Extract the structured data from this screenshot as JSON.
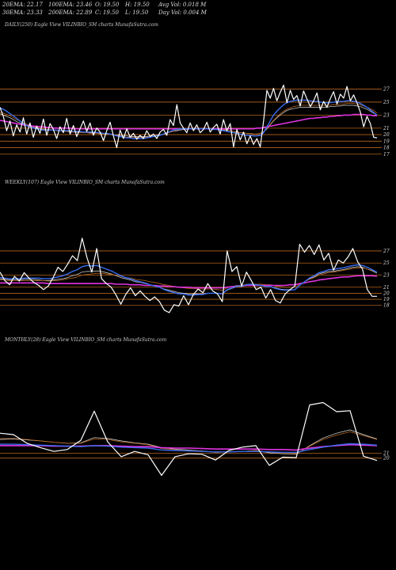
{
  "stats": [
    {
      "id": "ema20",
      "label": "20EMA: 22.17"
    },
    {
      "id": "ema100",
      "label": "100EMA: 23.46"
    },
    {
      "id": "open",
      "label": "O: 19.50"
    },
    {
      "id": "high",
      "label": "H: 19.50"
    },
    {
      "id": "avgvol",
      "label": "Avg Vol: 0.018 M"
    },
    {
      "id": "ema30",
      "label": "30EMA: 23.33"
    },
    {
      "id": "ema200",
      "label": "200EMA: 22.89"
    },
    {
      "id": "close",
      "label": "C: 19.50"
    },
    {
      "id": "low",
      "label": "L: 19.50"
    },
    {
      "id": "dayvol",
      "label": "Day Vol: 0.004  M"
    }
  ],
  "colors": {
    "background": "#000000",
    "price": "#ffffff",
    "ema_blue": "#3a6df0",
    "ema_magenta": "#e033e0",
    "ema_brown": "#b5651d",
    "ema_orange": "#f0a040",
    "ema_white": "#dddddd",
    "level_lines": "#b5651d"
  },
  "chart_data": [
    {
      "type": "line",
      "title": "DAILY(250) Eagle  View  VILINBIO_SM charts MunafaSutra.com",
      "y_ticks": [
        27,
        25,
        23,
        21,
        20,
        19,
        18,
        17
      ],
      "ylim": [
        16,
        29
      ],
      "price": [
        24.2,
        22.8,
        20.6,
        22.1,
        19.8,
        21.5,
        20.4,
        22.6,
        20.1,
        21.8,
        19.6,
        21.3,
        20.2,
        22.4,
        19.9,
        21.7,
        20.8,
        19.4,
        21.2,
        20.3,
        22.5,
        20.1,
        21.4,
        19.7,
        20.9,
        22.1,
        20.5,
        21.8,
        19.9,
        21.0,
        20.4,
        19.1,
        20.6,
        21.9,
        19.8,
        18.0,
        20.7,
        19.4,
        20.9,
        19.6,
        20.2,
        19.3,
        19.9,
        19.4,
        20.6,
        19.7,
        20.1,
        19.4,
        20.4,
        20.8,
        19.9,
        22.3,
        21.4,
        24.6,
        21.8,
        21.0,
        20.3,
        21.8,
        20.6,
        21.5,
        20.3,
        20.8,
        21.9,
        20.4,
        21.1,
        21.6,
        20.1,
        22.3,
        20.6,
        21.7,
        18.1,
        20.8,
        19.2,
        20.4,
        18.6,
        19.8,
        18.5,
        19.4,
        18.1,
        22.1,
        26.8,
        25.6,
        27.1,
        25.2,
        26.5,
        27.6,
        24.9,
        26.8,
        25.4,
        26.0,
        24.4,
        26.7,
        25.5,
        24.3,
        25.2,
        26.4,
        23.8,
        25.1,
        24.2,
        25.5,
        26.6,
        24.7,
        26.2,
        25.6,
        27.4,
        25.2,
        26.1,
        24.9,
        23.5,
        21.2,
        22.8,
        21.7,
        19.6,
        19.5
      ],
      "ema_blue": [
        24.1,
        23.9,
        23.6,
        23.2,
        22.9,
        22.5,
        22.1,
        21.7,
        21.4,
        21.2,
        21.0,
        20.9,
        20.8,
        20.7,
        20.7,
        20.7,
        20.7,
        20.7,
        20.6,
        20.6,
        20.6,
        20.6,
        20.5,
        20.5,
        20.5,
        20.4,
        20.4,
        20.4,
        20.4,
        20.3,
        20.3,
        20.2,
        20.2,
        20.1,
        20.0,
        19.8,
        19.7,
        19.6,
        19.5,
        19.5,
        19.4,
        19.4,
        19.4,
        19.4,
        19.5,
        19.6,
        19.7,
        19.8,
        19.9,
        20.1,
        20.3,
        20.5,
        20.7,
        20.8,
        20.9,
        20.9,
        20.9,
        20.9,
        20.9,
        20.9,
        20.9,
        20.9,
        20.9,
        20.9,
        20.8,
        20.8,
        20.7,
        20.6,
        20.5,
        20.4,
        20.3,
        20.2,
        20.1,
        20.0,
        19.9,
        19.9,
        19.8,
        19.8,
        19.9,
        20.3,
        21.2,
        22.1,
        23.0,
        23.6,
        24.1,
        24.6,
        24.9,
        25.1,
        25.2,
        25.3,
        25.3,
        25.3,
        25.3,
        25.2,
        25.1,
        25.1,
        25.0,
        24.9,
        24.9,
        24.9,
        25.0,
        25.0,
        25.1,
        25.1,
        25.2,
        25.2,
        25.1,
        25.0,
        24.8,
        24.5,
        24.2,
        23.8,
        23.4,
        23.0
      ],
      "ema_magenta": [
        22.2,
        22.1,
        22.0,
        21.9,
        21.8,
        21.7,
        21.6,
        21.5,
        21.4,
        21.4,
        21.3,
        21.3,
        21.2,
        21.2,
        21.1,
        21.1,
        21.0,
        21.0,
        21.0,
        21.0,
        21.0,
        21.0,
        20.9,
        20.9,
        20.9,
        20.9,
        20.9,
        20.9,
        20.9,
        20.9,
        20.9,
        20.9,
        20.9,
        20.9,
        20.9,
        20.9,
        20.9,
        20.9,
        20.9,
        20.9,
        20.9,
        20.9,
        20.9,
        20.9,
        20.9,
        20.9,
        20.9,
        20.9,
        20.9,
        20.9,
        20.9,
        20.9,
        20.9,
        20.9,
        20.9,
        20.9,
        20.9,
        20.9,
        20.9,
        20.9,
        20.9,
        20.9,
        20.9,
        20.9,
        20.9,
        20.9,
        20.9,
        20.9,
        20.9,
        20.9,
        20.9,
        20.9,
        20.9,
        20.9,
        20.9,
        20.9,
        20.9,
        21.0,
        21.0,
        21.1,
        21.2,
        21.3,
        21.4,
        21.5,
        21.6,
        21.7,
        21.8,
        21.9,
        22.0,
        22.1,
        22.2,
        22.3,
        22.4,
        22.5,
        22.5,
        22.6,
        22.6,
        22.7,
        22.7,
        22.8,
        22.8,
        22.9,
        22.9,
        23.0,
        23.0,
        23.0,
        23.1,
        23.1,
        23.1,
        23.1,
        23.0,
        23.0,
        22.9,
        22.9
      ],
      "ema_brown": [
        23.4,
        23.3,
        23.1,
        22.9,
        22.6,
        22.3,
        22.1,
        21.8,
        21.6,
        21.4,
        21.2,
        21.1,
        21.0,
        20.9,
        20.8,
        20.8,
        20.7,
        20.6,
        20.6,
        20.5,
        20.5,
        20.4,
        20.4,
        20.3,
        20.3,
        20.3,
        20.3,
        20.2,
        20.2,
        20.2,
        20.1,
        20.1,
        20.0,
        20.0,
        19.9,
        19.8,
        19.7,
        19.7,
        19.6,
        19.6,
        19.6,
        19.6,
        19.6,
        19.6,
        19.6,
        19.7,
        19.7,
        19.8,
        19.9,
        20.0,
        20.2,
        20.4,
        20.5,
        20.7,
        20.8,
        20.9,
        20.9,
        21.0,
        21.0,
        21.0,
        21.0,
        21.0,
        21.0,
        21.0,
        20.9,
        20.9,
        20.8,
        20.8,
        20.7,
        20.6,
        20.5,
        20.4,
        20.3,
        20.3,
        20.2,
        20.2,
        20.1,
        20.1,
        20.2,
        20.5,
        21.0,
        21.6,
        22.2,
        22.7,
        23.2,
        23.6,
        23.9,
        24.1,
        24.3,
        24.4,
        24.5,
        24.5,
        24.5,
        24.5,
        24.5,
        24.5,
        24.5,
        24.5,
        24.5,
        24.5,
        24.6,
        24.6,
        24.7,
        24.7,
        24.8,
        24.8,
        24.8,
        24.7,
        24.6,
        24.4,
        24.2,
        24.0,
        23.7,
        23.3
      ],
      "ema_white": [
        23.2,
        23.0,
        22.8,
        22.6,
        22.3,
        22.0,
        21.8,
        21.6,
        21.4,
        21.2,
        21.1,
        21.0,
        20.9,
        20.8,
        20.8,
        20.7,
        20.7,
        20.6,
        20.6,
        20.6,
        20.5,
        20.5,
        20.5,
        20.4,
        20.4,
        20.4,
        20.3,
        20.3,
        20.3,
        20.3,
        20.2,
        20.2,
        20.1,
        20.1,
        20.0,
        19.9,
        19.9,
        19.8,
        19.8,
        19.7,
        19.7,
        19.7,
        19.7,
        19.7,
        19.7,
        19.8,
        19.8,
        19.9,
        20.0,
        20.1,
        20.2,
        20.4,
        20.5,
        20.6,
        20.7,
        20.8,
        20.8,
        20.9,
        20.9,
        20.9,
        20.9,
        20.9,
        20.9,
        20.9,
        20.9,
        20.8,
        20.8,
        20.7,
        20.7,
        20.6,
        20.5,
        20.4,
        20.3,
        20.3,
        20.2,
        20.2,
        20.1,
        20.1,
        20.2,
        20.4,
        20.9,
        21.5,
        22.1,
        22.6,
        23.0,
        23.4,
        23.7,
        23.9,
        24.0,
        24.1,
        24.2,
        24.2,
        24.2,
        24.2,
        24.2,
        24.2,
        24.2,
        24.2,
        24.2,
        24.3,
        24.3,
        24.4,
        24.4,
        24.5,
        24.5,
        24.5,
        24.5,
        24.4,
        24.3,
        24.1,
        23.9,
        23.6,
        23.3,
        23.0
      ]
    },
    {
      "type": "line",
      "title": "WEEKLY(107) Eagle  View  VILINBIO_SM charts MunafaSutra.com",
      "y_ticks": [
        27,
        25,
        23,
        21,
        20,
        19,
        18
      ],
      "ylim": [
        16,
        30
      ],
      "price": [
        23.5,
        22.1,
        21.4,
        22.8,
        22.0,
        23.4,
        22.5,
        21.8,
        21.3,
        20.6,
        21.2,
        22.6,
        24.3,
        23.6,
        24.8,
        26.2,
        25.4,
        29.1,
        25.9,
        23.5,
        27.4,
        22.4,
        21.6,
        21.0,
        19.7,
        18.2,
        19.8,
        20.9,
        19.6,
        20.4,
        19.5,
        18.8,
        19.4,
        18.6,
        17.2,
        16.8,
        18.1,
        17.9,
        19.6,
        18.1,
        19.8,
        20.7,
        20.1,
        21.6,
        20.4,
        19.9,
        18.6,
        27.0,
        23.6,
        24.4,
        21.2,
        23.5,
        22.1,
        20.6,
        21.0,
        19.2,
        20.6,
        18.8,
        18.4,
        19.9,
        20.6,
        21.2,
        28.1,
        26.8,
        27.9,
        26.4,
        28.0,
        25.5,
        26.6,
        23.8,
        25.5,
        25.0,
        26.0,
        27.4,
        25.2,
        24.0,
        20.6,
        19.5,
        19.5
      ],
      "ema_blue": [
        22.6,
        22.5,
        22.4,
        22.4,
        22.4,
        22.5,
        22.5,
        22.5,
        22.5,
        22.4,
        22.4,
        22.5,
        22.7,
        22.9,
        23.2,
        23.6,
        23.9,
        24.4,
        24.6,
        24.5,
        24.6,
        24.3,
        24.0,
        23.7,
        23.3,
        22.9,
        22.6,
        22.4,
        22.1,
        21.9,
        21.7,
        21.4,
        21.2,
        21.0,
        20.6,
        20.3,
        20.1,
        19.9,
        19.9,
        19.7,
        19.7,
        19.8,
        19.8,
        20.0,
        20.0,
        20.0,
        19.9,
        20.6,
        20.9,
        21.2,
        21.2,
        21.4,
        21.5,
        21.4,
        21.3,
        21.1,
        21.1,
        20.8,
        20.6,
        20.5,
        20.5,
        20.6,
        21.3,
        21.9,
        22.5,
        22.9,
        23.4,
        23.6,
        23.9,
        23.9,
        24.1,
        24.2,
        24.4,
        24.6,
        24.7,
        24.6,
        24.3,
        23.9,
        23.5
      ],
      "ema_magenta": [
        21.7,
        21.7,
        21.7,
        21.7,
        21.7,
        21.7,
        21.7,
        21.7,
        21.7,
        21.7,
        21.6,
        21.6,
        21.6,
        21.6,
        21.6,
        21.6,
        21.6,
        21.6,
        21.6,
        21.6,
        21.6,
        21.6,
        21.6,
        21.6,
        21.5,
        21.5,
        21.5,
        21.4,
        21.4,
        21.4,
        21.3,
        21.3,
        21.3,
        21.2,
        21.2,
        21.1,
        21.1,
        21.0,
        21.0,
        21.0,
        20.9,
        20.9,
        20.9,
        20.9,
        20.9,
        20.9,
        20.9,
        21.0,
        21.1,
        21.2,
        21.2,
        21.3,
        21.3,
        21.3,
        21.3,
        21.3,
        21.3,
        21.3,
        21.3,
        21.3,
        21.4,
        21.4,
        21.6,
        21.7,
        21.9,
        22.0,
        22.2,
        22.3,
        22.4,
        22.5,
        22.6,
        22.7,
        22.7,
        22.8,
        22.9,
        22.9,
        22.9,
        22.9,
        22.8
      ],
      "ema_brown": [
        22.2,
        22.2,
        22.1,
        22.1,
        22.1,
        22.1,
        22.1,
        22.1,
        22.1,
        22.1,
        22.0,
        22.1,
        22.1,
        22.2,
        22.4,
        22.5,
        22.7,
        23.0,
        23.1,
        23.2,
        23.3,
        23.3,
        23.2,
        23.1,
        23.0,
        22.8,
        22.6,
        22.5,
        22.3,
        22.2,
        22.1,
        21.9,
        21.8,
        21.6,
        21.4,
        21.3,
        21.1,
        21.0,
        20.9,
        20.8,
        20.8,
        20.7,
        20.7,
        20.7,
        20.7,
        20.6,
        20.5,
        20.9,
        21.1,
        21.3,
        21.3,
        21.5,
        21.5,
        21.5,
        21.5,
        21.4,
        21.4,
        21.2,
        21.1,
        21.0,
        21.0,
        21.0,
        21.5,
        21.9,
        22.3,
        22.6,
        23.0,
        23.2,
        23.4,
        23.5,
        23.6,
        23.8,
        23.9,
        24.1,
        24.2,
        24.2,
        24.0,
        23.8,
        23.5
      ],
      "ema_white": [
        22.4,
        22.3,
        22.2,
        22.3,
        22.2,
        22.3,
        22.3,
        22.3,
        22.2,
        22.1,
        22.1,
        22.2,
        22.3,
        22.4,
        22.6,
        22.9,
        23.1,
        23.5,
        23.6,
        23.6,
        23.7,
        23.6,
        23.4,
        23.2,
        22.9,
        22.6,
        22.4,
        22.2,
        21.9,
        21.8,
        21.6,
        21.4,
        21.2,
        21.0,
        20.7,
        20.5,
        20.3,
        20.1,
        20.0,
        19.9,
        19.9,
        19.9,
        19.9,
        20.0,
        20.0,
        20.0,
        19.9,
        20.5,
        20.8,
        21.1,
        21.1,
        21.3,
        21.4,
        21.3,
        21.3,
        21.1,
        21.1,
        20.9,
        20.7,
        20.6,
        20.6,
        20.6,
        21.3,
        21.9,
        22.4,
        22.7,
        23.2,
        23.4,
        23.6,
        23.6,
        23.8,
        23.9,
        24.1,
        24.3,
        24.4,
        24.3,
        24.0,
        23.7,
        23.3
      ]
    },
    {
      "type": "line",
      "title": "MONTHLY(28) Eagle  View  VILINBIO_SM charts MunafaSutra.com",
      "y_ticks": [
        21,
        20
      ],
      "ylim": [
        14,
        33
      ],
      "price": [
        25.2,
        24.9,
        23.1,
        22.2,
        21.4,
        21.8,
        23.7,
        29.8,
        23.4,
        20.3,
        21.4,
        20.7,
        16.4,
        20.3,
        20.9,
        20.8,
        19.6,
        21.6,
        22.3,
        22.6,
        18.5,
        20.2,
        20.1,
        31.1,
        31.6,
        29.7,
        29.9,
        20.4,
        19.5
      ],
      "ema_blue": [
        22.9,
        22.9,
        22.8,
        22.7,
        22.6,
        22.5,
        22.4,
        22.6,
        22.5,
        22.3,
        22.2,
        22.1,
        21.7,
        21.6,
        21.5,
        21.4,
        21.3,
        21.3,
        21.4,
        21.4,
        21.3,
        21.2,
        21.2,
        21.8,
        22.3,
        22.7,
        23.0,
        22.9,
        22.7
      ],
      "ema_magenta": [
        22.6,
        22.6,
        22.6,
        22.6,
        22.5,
        22.5,
        22.5,
        22.6,
        22.6,
        22.5,
        22.4,
        22.4,
        22.2,
        22.1,
        22.1,
        22.0,
        21.9,
        21.9,
        21.9,
        21.9,
        21.8,
        21.8,
        21.7,
        22.1,
        22.4,
        22.6,
        22.8,
        22.7,
        22.6
      ],
      "ema_brown": [
        24.1,
        24.1,
        23.9,
        23.6,
        23.3,
        23.1,
        23.1,
        24.0,
        23.9,
        23.4,
        23.1,
        22.8,
        22.0,
        21.8,
        21.6,
        21.5,
        21.2,
        21.3,
        21.4,
        21.6,
        21.2,
        21.0,
        20.9,
        22.5,
        23.9,
        24.8,
        25.5,
        24.7,
        23.9
      ],
      "ema_white": [
        23.9,
        24.0,
        23.8,
        23.6,
        23.3,
        23.1,
        23.2,
        24.3,
        24.1,
        23.6,
        23.2,
        22.9,
        22.2,
        21.9,
        21.7,
        21.5,
        21.2,
        21.3,
        21.4,
        21.6,
        21.1,
        20.9,
        20.8,
        22.6,
        24.2,
        25.2,
        25.9,
        24.9,
        24.0
      ]
    }
  ]
}
